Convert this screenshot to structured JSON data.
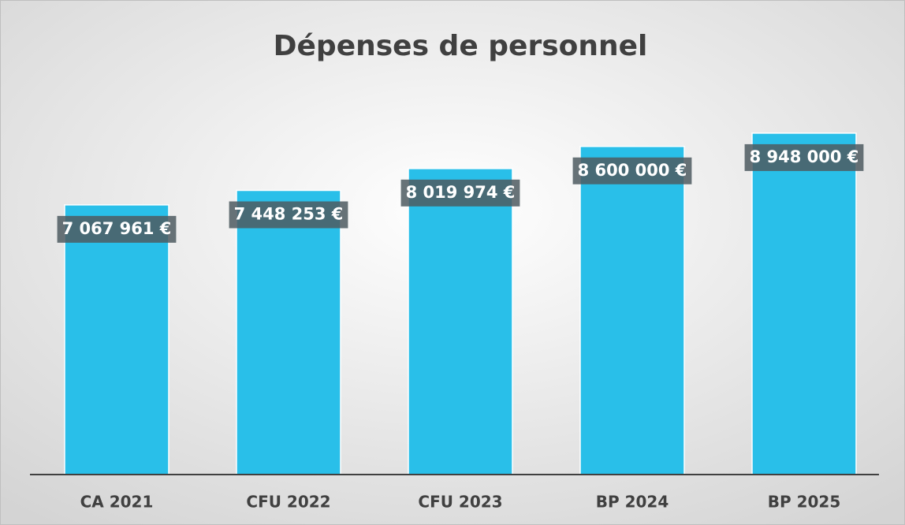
{
  "chart_data": {
    "type": "bar",
    "title": "Dépenses de personnel",
    "categories": [
      "CA 2021",
      "CFU 2022",
      "CFU 2023",
      "BP 2024",
      "BP 2025"
    ],
    "values": [
      7067961,
      7448253,
      8019974,
      8600000,
      8948000
    ],
    "value_labels": [
      "7 067 961 €",
      "7 448 253 €",
      "8 019 974 €",
      "8 600 000 €",
      "8 948 000 €"
    ],
    "color": "#29bfe9",
    "ylim": [
      0,
      10000000
    ]
  }
}
